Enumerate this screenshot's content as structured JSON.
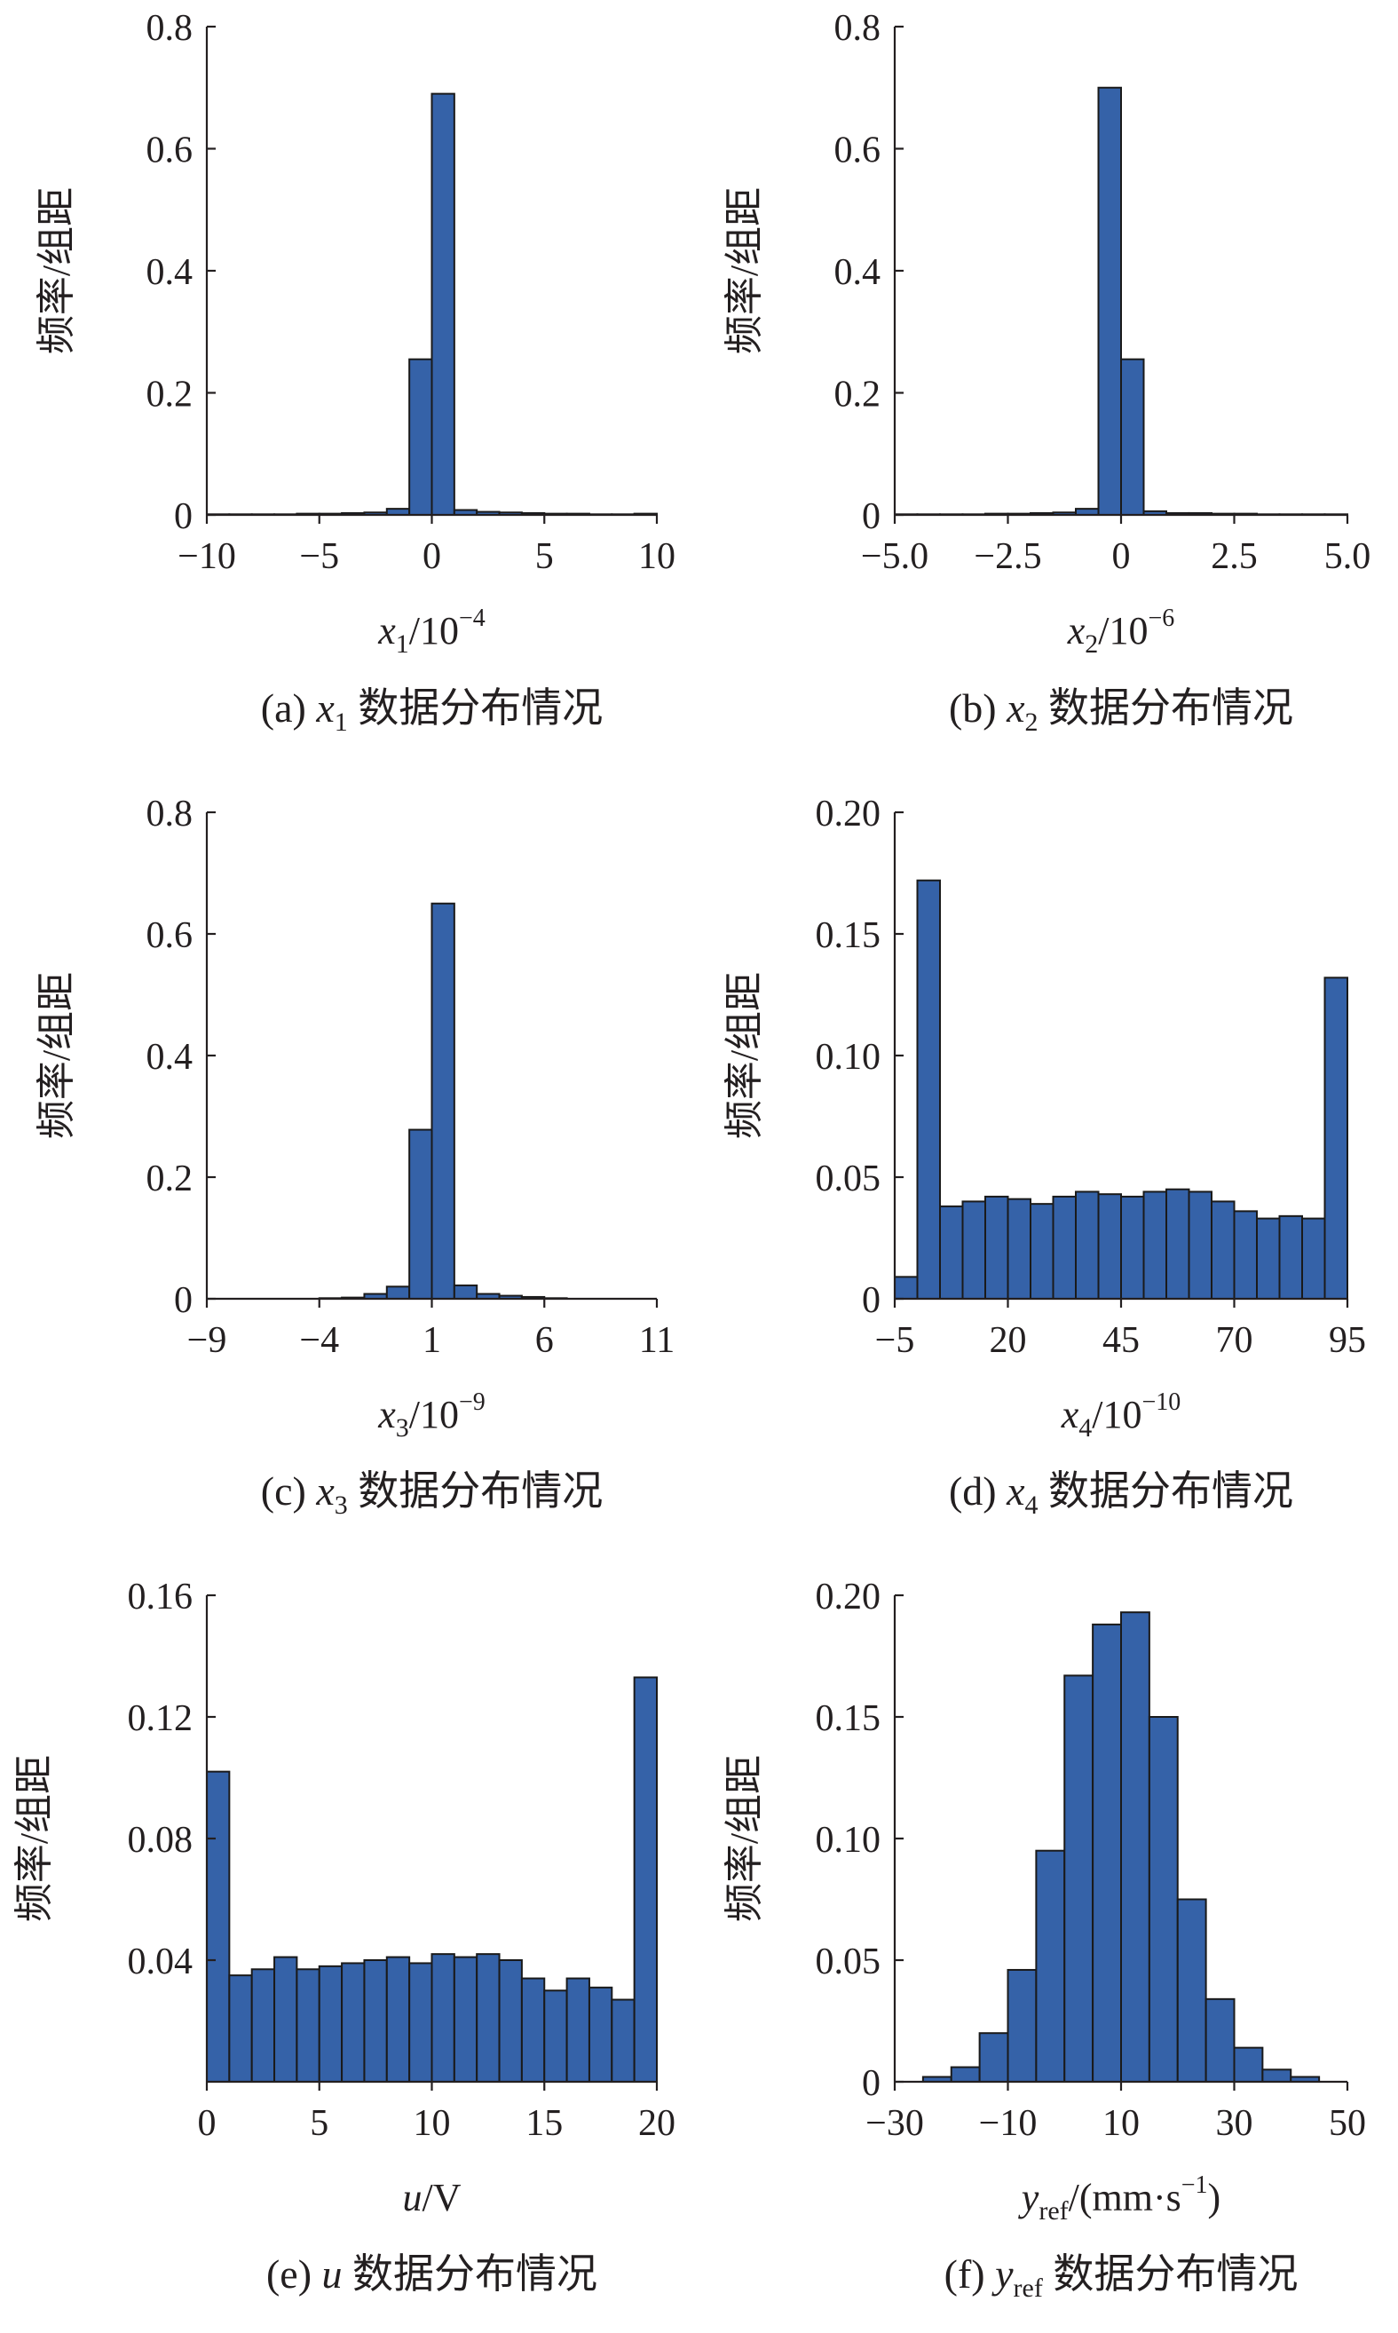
{
  "y_axis_label": "频率/组距",
  "chart_data": [
    {
      "id": "a",
      "type": "bar",
      "panel": "(a)",
      "caption_var": "x",
      "caption_sub": "1",
      "caption_text": "数据分布情况",
      "xlabel_var": "x",
      "xlabel_sub": "1",
      "xlabel_unit": "/10",
      "xlabel_exp": "−4",
      "xlim": [
        -10,
        10
      ],
      "ylim": [
        0,
        0.8
      ],
      "xticks": [
        -10,
        -5,
        0,
        5,
        10
      ],
      "xtick_labels": [
        "−10",
        "−5",
        "0",
        "5",
        "10"
      ],
      "yticks": [
        0,
        0.2,
        0.4,
        0.6,
        0.8
      ],
      "ytick_labels": [
        "0",
        "0.2",
        "0.4",
        "0.6",
        "0.8"
      ],
      "bin_start": -10,
      "bin_width": 1,
      "values": [
        0.001,
        0.001,
        0.001,
        0.001,
        0.002,
        0.002,
        0.003,
        0.004,
        0.01,
        0.255,
        0.69,
        0.008,
        0.005,
        0.004,
        0.003,
        0.002,
        0.002,
        0.001,
        0.001,
        0.002
      ]
    },
    {
      "id": "b",
      "type": "bar",
      "panel": "(b)",
      "caption_var": "x",
      "caption_sub": "2",
      "caption_text": "数据分布情况",
      "xlabel_var": "x",
      "xlabel_sub": "2",
      "xlabel_unit": "/10",
      "xlabel_exp": "−6",
      "xlim": [
        -5,
        5
      ],
      "ylim": [
        0,
        0.8
      ],
      "xticks": [
        -5,
        -2.5,
        0,
        2.5,
        5
      ],
      "xtick_labels": [
        "−5.0",
        "−2.5",
        "0",
        "2.5",
        "5.0"
      ],
      "yticks": [
        0,
        0.2,
        0.4,
        0.6,
        0.8
      ],
      "ytick_labels": [
        "0",
        "0.2",
        "0.4",
        "0.6",
        "0.8"
      ],
      "bin_start": -5,
      "bin_width": 0.5,
      "values": [
        0.001,
        0.001,
        0.001,
        0.001,
        0.002,
        0.002,
        0.003,
        0.004,
        0.01,
        0.7,
        0.255,
        0.006,
        0.003,
        0.003,
        0.002,
        0.002,
        0.001,
        0.001,
        0.001,
        0.001
      ]
    },
    {
      "id": "c",
      "type": "bar",
      "panel": "(c)",
      "caption_var": "x",
      "caption_sub": "3",
      "caption_text": "数据分布情况",
      "xlabel_var": "x",
      "xlabel_sub": "3",
      "xlabel_unit": "/10",
      "xlabel_exp": "−9",
      "xlim": [
        -9,
        11
      ],
      "ylim": [
        0,
        0.8
      ],
      "xticks": [
        -9,
        -4,
        1,
        6,
        11
      ],
      "xtick_labels": [
        "−9",
        "−4",
        "1",
        "6",
        "11"
      ],
      "yticks": [
        0,
        0.2,
        0.4,
        0.6,
        0.8
      ],
      "ytick_labels": [
        "0",
        "0.2",
        "0.4",
        "0.6",
        "0.8"
      ],
      "bin_start": -9,
      "bin_width": 1,
      "values": [
        0,
        0,
        0,
        0,
        0,
        0.001,
        0.002,
        0.008,
        0.02,
        0.278,
        0.65,
        0.022,
        0.008,
        0.005,
        0.003,
        0.001,
        0,
        0,
        0,
        0
      ]
    },
    {
      "id": "d",
      "type": "bar",
      "panel": "(d)",
      "caption_var": "x",
      "caption_sub": "4",
      "caption_text": "数据分布情况",
      "xlabel_var": "x",
      "xlabel_sub": "4",
      "xlabel_unit": "/10",
      "xlabel_exp": "−10",
      "xlim": [
        -5,
        95
      ],
      "ylim": [
        0,
        0.2
      ],
      "xticks": [
        -5,
        20,
        45,
        70,
        95
      ],
      "xtick_labels": [
        "−5",
        "20",
        "45",
        "70",
        "95"
      ],
      "yticks": [
        0,
        0.05,
        0.1,
        0.15,
        0.2
      ],
      "ytick_labels": [
        "0",
        "0.05",
        "0.10",
        "0.15",
        "0.20"
      ],
      "bin_start": -5,
      "bin_width": 5,
      "values": [
        0.009,
        0.172,
        0.038,
        0.04,
        0.042,
        0.041,
        0.039,
        0.042,
        0.044,
        0.043,
        0.042,
        0.044,
        0.045,
        0.044,
        0.04,
        0.036,
        0.033,
        0.034,
        0.033,
        0.132
      ]
    },
    {
      "id": "e",
      "type": "bar",
      "panel": "(e)",
      "caption_var": "u",
      "caption_sub": "",
      "caption_text": "数据分布情况",
      "xlabel_var": "u",
      "xlabel_sub": "",
      "xlabel_unit": "/V",
      "xlabel_exp": "",
      "xlim": [
        0,
        20
      ],
      "ylim": [
        0,
        0.16
      ],
      "xticks": [
        0,
        5,
        10,
        15,
        20
      ],
      "xtick_labels": [
        "0",
        "5",
        "10",
        "15",
        "20"
      ],
      "yticks": [
        0.04,
        0.08,
        0.12,
        0.16
      ],
      "ytick_labels": [
        "0.04",
        "0.08",
        "0.12",
        "0.16"
      ],
      "bin_start": 0,
      "bin_width": 1,
      "values": [
        0.102,
        0.035,
        0.037,
        0.041,
        0.037,
        0.038,
        0.039,
        0.04,
        0.041,
        0.039,
        0.042,
        0.041,
        0.042,
        0.04,
        0.034,
        0.03,
        0.034,
        0.031,
        0.027,
        0.133
      ]
    },
    {
      "id": "f",
      "type": "bar",
      "panel": "(f)",
      "caption_var": "y",
      "caption_sub": "ref",
      "caption_text": "数据分布情况",
      "xlabel_var": "y",
      "xlabel_sub": "ref",
      "xlabel_unit": "/(mm·s",
      "xlabel_exp": "−1",
      "xlabel_tail": ")",
      "xlim": [
        -30,
        50
      ],
      "ylim": [
        0,
        0.2
      ],
      "xticks": [
        -30,
        -10,
        10,
        30,
        50
      ],
      "xtick_labels": [
        "−30",
        "−10",
        "10",
        "30",
        "50"
      ],
      "yticks": [
        0,
        0.05,
        0.1,
        0.15,
        0.2
      ],
      "ytick_labels": [
        "0",
        "0.05",
        "0.10",
        "0.15",
        "0.20"
      ],
      "bin_start": -25,
      "bin_width": 5,
      "values": [
        0.002,
        0.006,
        0.02,
        0.046,
        0.095,
        0.167,
        0.188,
        0.193,
        0.15,
        0.075,
        0.034,
        0.014,
        0.005,
        0.002
      ]
    }
  ]
}
